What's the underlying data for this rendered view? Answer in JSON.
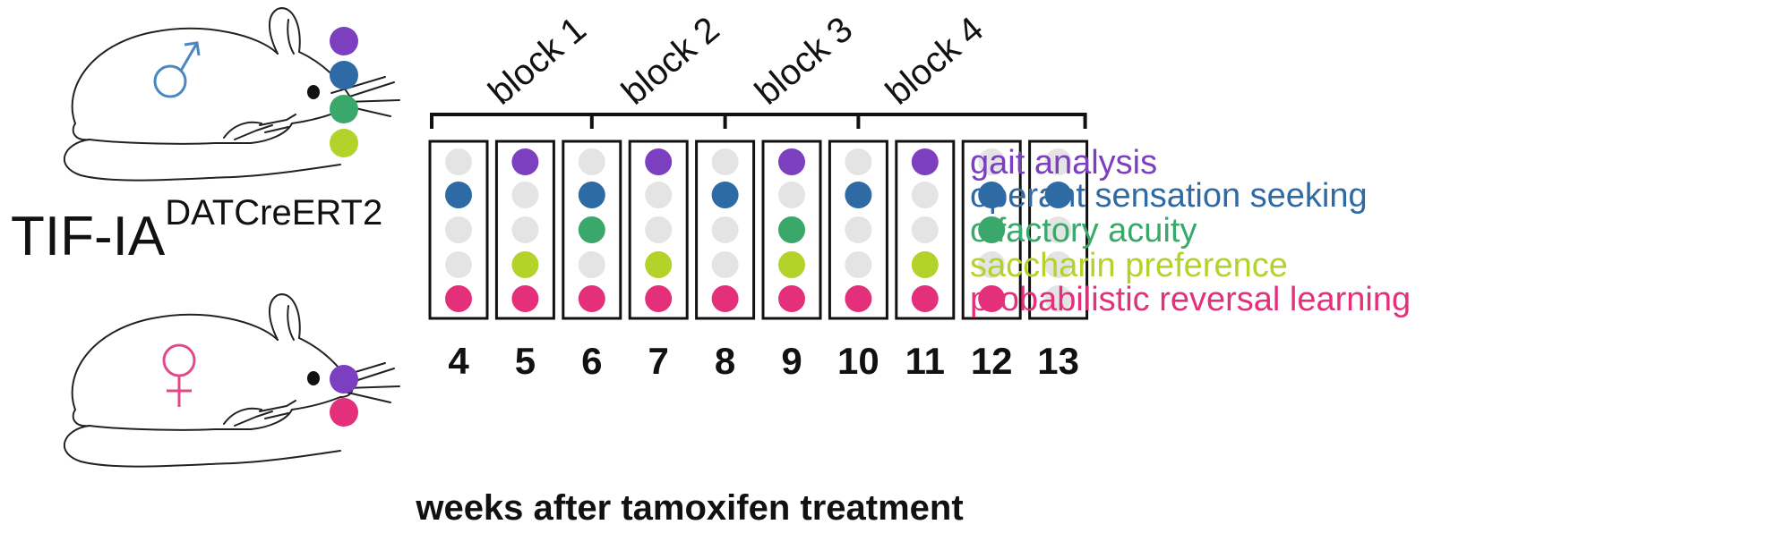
{
  "title": {
    "main": "TIF-IA",
    "superscript": "DATCreERT2"
  },
  "colors": {
    "gait": "#7b3fbf",
    "operant": "#2e6aa3",
    "olfactory": "#3aa86a",
    "saccharin": "#b3d32a",
    "prl": "#e4307a",
    "inactive": "#e4e4e4",
    "male_symbol": "#4a86c0",
    "female_symbol": "#e04a8a"
  },
  "mice": {
    "male": {
      "symbol": "♂",
      "symbol_name": "male-symbol",
      "tests": [
        "gait",
        "operant",
        "olfactory",
        "saccharin"
      ]
    },
    "female": {
      "symbol": "♀",
      "symbol_name": "female-symbol",
      "tests": [
        "gait",
        "prl"
      ]
    }
  },
  "blocks": [
    "block 1",
    "block 2",
    "block 3",
    "block 4"
  ],
  "weeks": [
    "4",
    "5",
    "6",
    "7",
    "8",
    "9",
    "10",
    "11",
    "12",
    "13"
  ],
  "xlabel": "weeks after tamoxifen treatment",
  "tests": [
    {
      "key": "gait",
      "label": "gait analysis"
    },
    {
      "key": "operant",
      "label": "operant sensation seeking"
    },
    {
      "key": "olfactory",
      "label": "olfactory acuity"
    },
    {
      "key": "saccharin",
      "label": "saccharin preference"
    },
    {
      "key": "prl",
      "label": "probabilistic reversal learning"
    }
  ],
  "schedule": [
    [
      0,
      1,
      0,
      1,
      0,
      1,
      0,
      1,
      0,
      0
    ],
    [
      1,
      0,
      1,
      0,
      1,
      0,
      1,
      0,
      1,
      1
    ],
    [
      0,
      0,
      1,
      0,
      0,
      1,
      0,
      0,
      1,
      0
    ],
    [
      0,
      1,
      0,
      1,
      0,
      1,
      0,
      1,
      0,
      0
    ],
    [
      1,
      1,
      1,
      1,
      1,
      1,
      1,
      1,
      1,
      0
    ]
  ]
}
